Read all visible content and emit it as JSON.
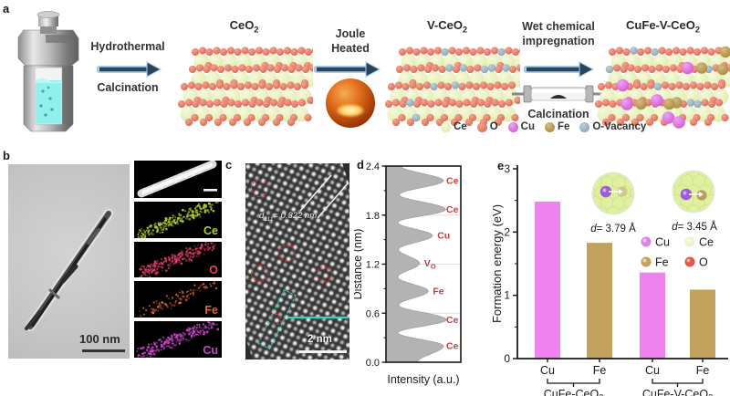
{
  "figure": {
    "panel_labels": {
      "a": "a",
      "b": "b",
      "c": "c",
      "d": "d",
      "e": "e"
    }
  },
  "panel_a": {
    "step1_top": "Hydrothermal",
    "step1_bottom": "Calcination",
    "material1": {
      "pre": "CeO",
      "sub": "2"
    },
    "step2_line1": "Joule",
    "step2_line2": "Heated",
    "material2": {
      "pre": "V-CeO",
      "sub": "2"
    },
    "step3_line1": "Wet chemical",
    "step3_line2": "impregnation",
    "step3_bottom": "Calcination",
    "material3": {
      "pre": "CuFe-V-CeO",
      "sub": "2"
    },
    "legend": [
      {
        "label": "Ce",
        "color": "#eef3cf",
        "gradient": [
          "#f6f9dd",
          "#e0ecab"
        ]
      },
      {
        "label": "O",
        "color": "#e98b7d",
        "gradient": [
          "#f2a492",
          "#dd6a54"
        ]
      },
      {
        "label": "Cu",
        "color": "#e081e4",
        "gradient": [
          "#efa3f2",
          "#d05cd6"
        ]
      },
      {
        "label": "Fe",
        "color": "#c2a25c",
        "gradient": [
          "#d6bc80",
          "#ab8a42"
        ]
      },
      {
        "label": "O-Vacancy",
        "color": "#9db7c4",
        "gradient": [
          "#bccfd8",
          "#8aa7b4"
        ]
      }
    ]
  },
  "panel_b": {
    "scale_label": "100 nm",
    "maps": [
      {
        "label": "",
        "type": "haadf",
        "color": "#e8e8e8"
      },
      {
        "label": "Ce",
        "type": "eds",
        "color": "#b5cc33"
      },
      {
        "label": "O",
        "type": "eds",
        "color": "#dd3f66"
      },
      {
        "label": "Fe",
        "type": "eds",
        "color": "#e2662a"
      },
      {
        "label": "Cu",
        "type": "eds",
        "color": "#cc44cc"
      }
    ]
  },
  "panel_c": {
    "dspacing": {
      "italic": "d",
      "sub": "111",
      "post": "= 0.322 nm"
    },
    "scale_label": "2 nm"
  },
  "chart_data": [
    {
      "id": "intensity_profile",
      "type": "area",
      "orientation": "horizontal-peaks",
      "xlabel": "Intensity (a.u.)",
      "ylabel": "Distance (nm)",
      "ylim": [
        0,
        2.4
      ],
      "yticks": [
        "0.0",
        "0.6",
        "1.2",
        "1.8",
        "2.4"
      ],
      "grid": true,
      "fill_color": "#b3b3b3",
      "label_color": "#cf3a3a",
      "profile": [
        {
          "d": 0.0,
          "i": 0.43
        },
        {
          "d": 0.2,
          "i": 0.79,
          "label": "Ce"
        },
        {
          "d": 0.36,
          "i": 0.16
        },
        {
          "d": 0.52,
          "i": 0.83,
          "label": "Ce"
        },
        {
          "d": 0.7,
          "i": 0.17
        },
        {
          "d": 0.87,
          "i": 0.58,
          "label": "Fe"
        },
        {
          "d": 1.04,
          "i": 0.16
        },
        {
          "d": 1.21,
          "i": 0.46,
          "label": "V",
          "label_sub": "O"
        },
        {
          "d": 1.38,
          "i": 0.17
        },
        {
          "d": 1.55,
          "i": 0.64,
          "label": "Cu"
        },
        {
          "d": 1.71,
          "i": 0.16
        },
        {
          "d": 1.87,
          "i": 0.82,
          "label": "Ce"
        },
        {
          "d": 2.05,
          "i": 0.18
        },
        {
          "d": 2.22,
          "i": 0.79,
          "label": "Ce"
        },
        {
          "d": 2.4,
          "i": 0.2
        }
      ]
    },
    {
      "id": "formation_energy",
      "type": "bar",
      "categories": [
        "Cu",
        "Fe",
        "Cu",
        "Fe"
      ],
      "values": [
        2.48,
        1.83,
        1.36,
        1.09
      ],
      "bar_colors": [
        "#ee82ee",
        "#c2a25c",
        "#ee82ee",
        "#c2a25c"
      ],
      "ylabel": "Formation energy (eV)",
      "ylim": [
        0,
        3
      ],
      "yticks": [
        0,
        1,
        2,
        3
      ],
      "minor_ticks": [
        0.5,
        1.5,
        2.5
      ],
      "groups": [
        {
          "label": {
            "pre": "CuFe-CeO",
            "sub": "2"
          },
          "span": [
            0,
            1
          ]
        },
        {
          "label": {
            "pre": "CuFe-V-CeO",
            "sub": "2"
          },
          "span": [
            2,
            3
          ]
        }
      ],
      "legend": [
        {
          "label": "Cu",
          "color": "#e081e4"
        },
        {
          "label": "Ce",
          "color": "#edf3d2"
        },
        {
          "label": "Fe",
          "color": "#c2a25c"
        },
        {
          "label": "O",
          "color": "#e2574a"
        }
      ],
      "insets": [
        {
          "label": {
            "italic": "d",
            "post": "= 3.79 Å"
          }
        },
        {
          "label": {
            "italic": "d",
            "post": "= 3.45 Å"
          }
        }
      ]
    }
  ]
}
